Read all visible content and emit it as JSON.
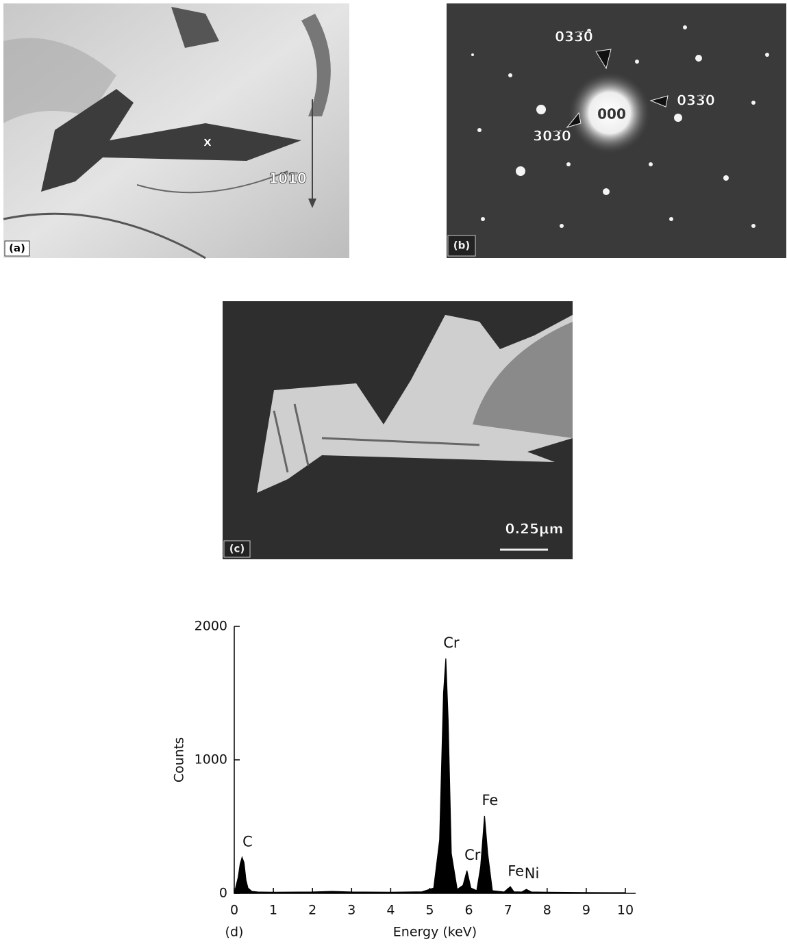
{
  "panels": [
    {
      "label": "(a)",
      "annotations": [
        "x",
        "10̅1̅0"
      ]
    },
    {
      "label": "(b)",
      "annotations": [
        "033̅0",
        "033̅0",
        "303̅0",
        "000"
      ]
    },
    {
      "label": "(c)",
      "scale_bar": "0.25μm"
    }
  ],
  "chart_data": {
    "type": "area",
    "panel_label": "(d)",
    "x_label": "Energy (keV)",
    "y_label": "Counts",
    "color": "#000000",
    "x": [
      0,
      0.1,
      0.15,
      0.2,
      0.25,
      0.3,
      0.35,
      0.45,
      0.6,
      1,
      2,
      2.5,
      3,
      4,
      4.8,
      5.1,
      5.25,
      5.35,
      5.41,
      5.47,
      5.55,
      5.7,
      5.85,
      5.95,
      6.05,
      6.2,
      6.3,
      6.4,
      6.48,
      6.6,
      6.9,
      7.06,
      7.15,
      7.35,
      7.47,
      7.6,
      8,
      9,
      10
    ],
    "values": [
      0,
      120,
      220,
      270,
      230,
      100,
      40,
      15,
      10,
      8,
      10,
      15,
      10,
      8,
      12,
      40,
      400,
      1500,
      1760,
      1300,
      300,
      30,
      60,
      170,
      40,
      20,
      200,
      580,
      300,
      20,
      10,
      50,
      12,
      10,
      30,
      10,
      8,
      6,
      5
    ],
    "annotations": [
      {
        "text": "C",
        "x": 0.2
      },
      {
        "text": "Cr",
        "x": 5.41
      },
      {
        "text": "Cr",
        "x": 5.95
      },
      {
        "text": "Fe",
        "x": 6.4
      },
      {
        "text": "Fe",
        "x": 7.06
      },
      {
        "text": "Ni",
        "x": 7.47
      }
    ],
    "xlim": [
      0,
      10
    ],
    "xticks": [
      0,
      1,
      2,
      3,
      4,
      5,
      6,
      7,
      8,
      9,
      10
    ],
    "ylim": [
      0,
      2000
    ],
    "yticks": [
      0,
      1000,
      2000
    ]
  }
}
